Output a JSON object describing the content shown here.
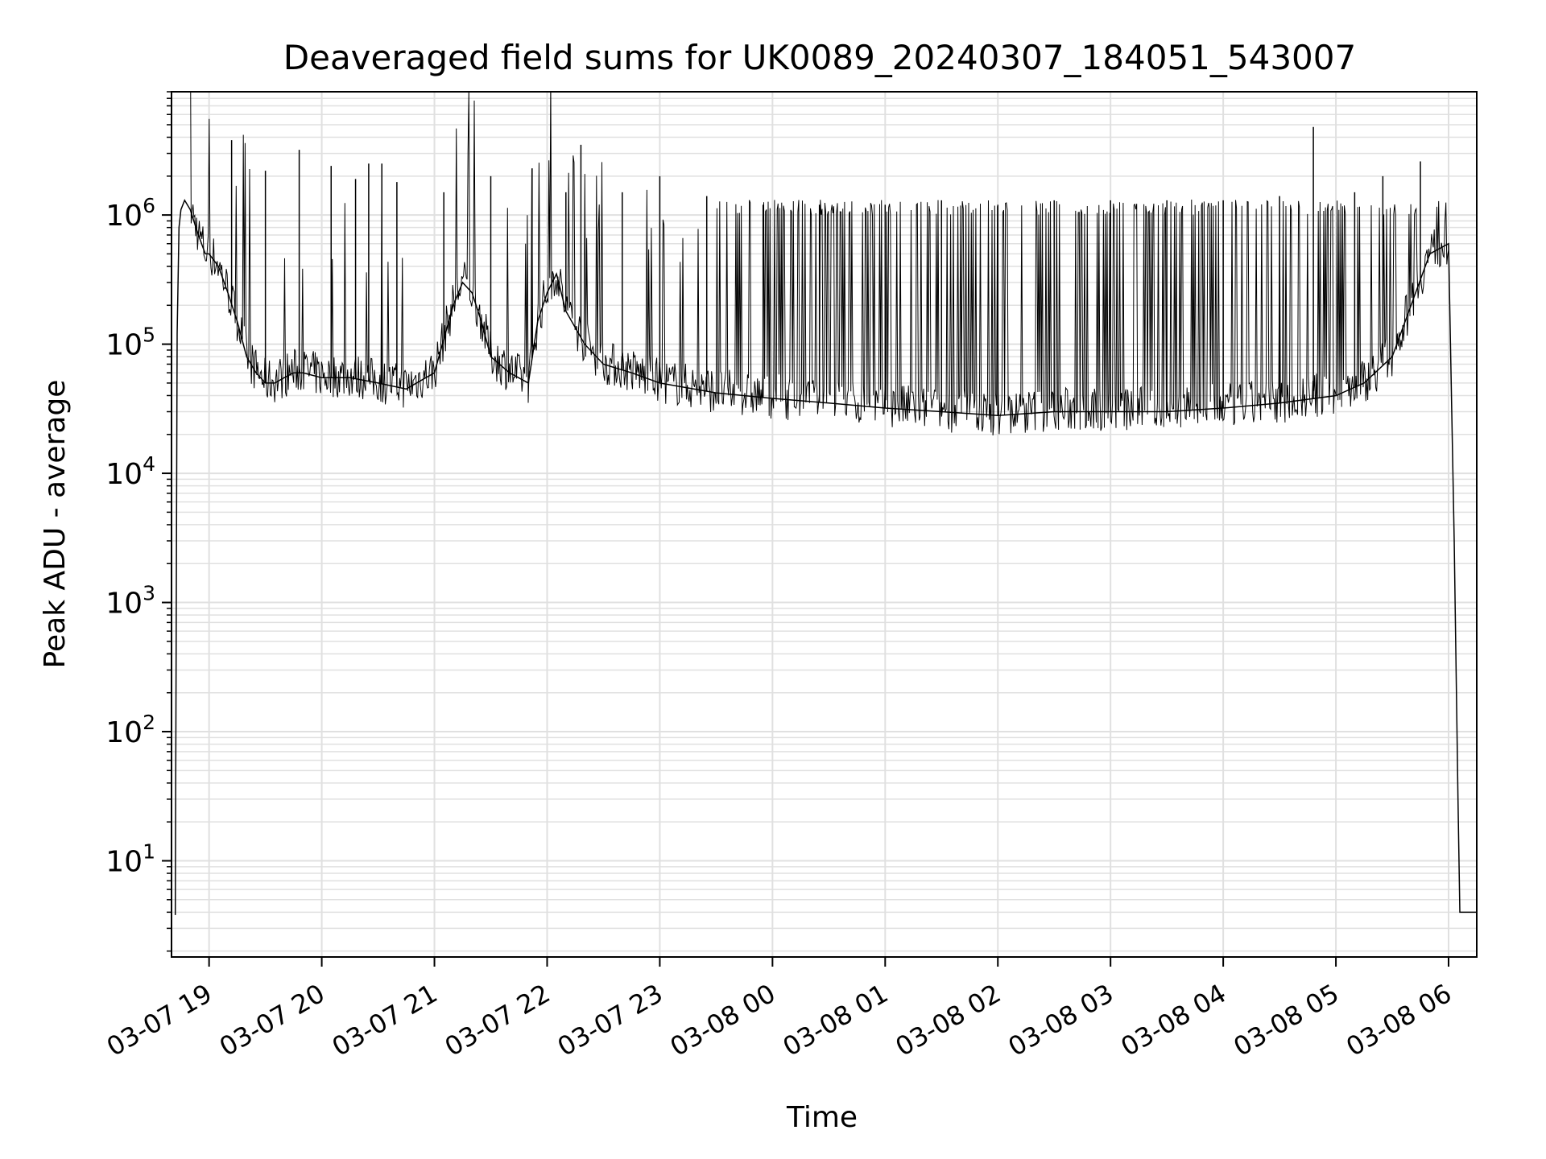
{
  "chart_data": {
    "type": "line",
    "title": "Deaveraged field sums for UK0089_20240307_184051_543007",
    "xlabel": "Time",
    "ylabel": "Peak ADU - average",
    "yscale": "log",
    "ylim": [
      1.8,
      9000000
    ],
    "xlim": [
      "2024-03-07 18:40",
      "2024-03-08 06:15"
    ],
    "grid": true,
    "line_color": "#000000",
    "grid_color": "#e0e0e0",
    "x_ticks": [
      {
        "value": "2024-03-07 19:00",
        "label": "03-07 19"
      },
      {
        "value": "2024-03-07 20:00",
        "label": "03-07 20"
      },
      {
        "value": "2024-03-07 21:00",
        "label": "03-07 21"
      },
      {
        "value": "2024-03-07 22:00",
        "label": "03-07 22"
      },
      {
        "value": "2024-03-07 23:00",
        "label": "03-07 23"
      },
      {
        "value": "2024-03-08 00:00",
        "label": "03-08 00"
      },
      {
        "value": "2024-03-08 01:00",
        "label": "03-08 01"
      },
      {
        "value": "2024-03-08 02:00",
        "label": "03-08 02"
      },
      {
        "value": "2024-03-08 03:00",
        "label": "03-08 03"
      },
      {
        "value": "2024-03-08 04:00",
        "label": "03-08 04"
      },
      {
        "value": "2024-03-08 05:00",
        "label": "03-08 05"
      },
      {
        "value": "2024-03-08 06:00",
        "label": "03-08 06"
      }
    ],
    "y_ticks": [
      {
        "value": 10,
        "base": "10",
        "exp": "1"
      },
      {
        "value": 100,
        "base": "10",
        "exp": "2"
      },
      {
        "value": 1000,
        "base": "10",
        "exp": "3"
      },
      {
        "value": 10000,
        "base": "10",
        "exp": "4"
      },
      {
        "value": 100000,
        "base": "10",
        "exp": "5"
      },
      {
        "value": 1000000,
        "base": "10",
        "exp": "6"
      }
    ],
    "series": [
      {
        "x": [
          "2024-03-07 18:42",
          "2024-03-07 18:43",
          "2024-03-07 18:44",
          "2024-03-07 18:45",
          "2024-03-07 18:47",
          "2024-03-07 18:50",
          "2024-03-07 18:53",
          "2024-03-07 18:56",
          "2024-03-07 18:58",
          "2024-03-07 19:00",
          "2024-03-07 19:05",
          "2024-03-07 19:10",
          "2024-03-07 19:15",
          "2024-03-07 19:20",
          "2024-03-07 19:25",
          "2024-03-07 19:30",
          "2024-03-07 19:35",
          "2024-03-07 19:40",
          "2024-03-07 19:45",
          "2024-03-07 19:50",
          "2024-03-07 20:00",
          "2024-03-07 20:15",
          "2024-03-07 20:30",
          "2024-03-07 20:45",
          "2024-03-07 21:00",
          "2024-03-07 21:10",
          "2024-03-07 21:15",
          "2024-03-07 21:20",
          "2024-03-07 21:25",
          "2024-03-07 21:30",
          "2024-03-07 21:40",
          "2024-03-07 21:50",
          "2024-03-07 21:55",
          "2024-03-07 22:00",
          "2024-03-07 22:05",
          "2024-03-07 22:10",
          "2024-03-07 22:20",
          "2024-03-07 22:30",
          "2024-03-07 22:45",
          "2024-03-07 23:00",
          "2024-03-07 23:30",
          "2024-03-08 00:00",
          "2024-03-08 00:30",
          "2024-03-08 01:00",
          "2024-03-08 01:30",
          "2024-03-08 02:00",
          "2024-03-08 02:30",
          "2024-03-08 03:00",
          "2024-03-08 03:30",
          "2024-03-08 04:00",
          "2024-03-08 04:30",
          "2024-03-08 05:00",
          "2024-03-08 05:15",
          "2024-03-08 05:30",
          "2024-03-08 05:40",
          "2024-03-08 05:50",
          "2024-03-08 06:00",
          "2024-03-08 06:03",
          "2024-03-08 06:05",
          "2024-03-08 06:06",
          "2024-03-08 06:08",
          "2024-03-08 06:15"
        ],
        "y": [
          3.8,
          120000,
          800000,
          1100000,
          1300000,
          1100000,
          800000,
          600000,
          500000,
          500000,
          400000,
          250000,
          150000,
          80000,
          60000,
          50000,
          50000,
          55000,
          60000,
          60000,
          55000,
          55000,
          50000,
          45000,
          60000,
          200000,
          300000,
          250000,
          150000,
          80000,
          60000,
          50000,
          150000,
          250000,
          350000,
          180000,
          100000,
          70000,
          60000,
          50000,
          42000,
          38000,
          35000,
          32000,
          30000,
          28000,
          30000,
          30000,
          30000,
          32000,
          35000,
          40000,
          50000,
          80000,
          200000,
          500000,
          600000,
          3000,
          30,
          4,
          4,
          4
        ]
      }
    ],
    "spikes": [
      {
        "x": "2024-03-07 19:12",
        "y": 3800000
      },
      {
        "x": "2024-03-07 19:30",
        "y": 2200000
      },
      {
        "x": "2024-03-07 19:48",
        "y": 3200000
      },
      {
        "x": "2024-03-07 20:05",
        "y": 2400000
      },
      {
        "x": "2024-03-07 20:18",
        "y": 1900000
      },
      {
        "x": "2024-03-07 20:25",
        "y": 2500000
      },
      {
        "x": "2024-03-07 20:32",
        "y": 2500000
      },
      {
        "x": "2024-03-07 20:40",
        "y": 1800000
      },
      {
        "x": "2024-03-07 21:05",
        "y": 1500000
      },
      {
        "x": "2024-03-07 21:30",
        "y": 2000000
      },
      {
        "x": "2024-03-07 21:52",
        "y": 2300000
      },
      {
        "x": "2024-03-07 22:10",
        "y": 1500000
      },
      {
        "x": "2024-03-07 22:18",
        "y": 3500000
      },
      {
        "x": "2024-03-07 22:40",
        "y": 1500000
      },
      {
        "x": "2024-03-07 23:00",
        "y": 2000000
      },
      {
        "x": "2024-03-07 23:25",
        "y": 1400000
      },
      {
        "x": "2024-03-07 23:55",
        "y": 1200000
      },
      {
        "x": "2024-03-08 00:25",
        "y": 1200000
      },
      {
        "x": "2024-03-08 01:00",
        "y": 1200000
      },
      {
        "x": "2024-03-08 01:30",
        "y": 1300000
      },
      {
        "x": "2024-03-08 02:00",
        "y": 1200000
      },
      {
        "x": "2024-03-08 02:30",
        "y": 1300000
      },
      {
        "x": "2024-03-08 03:00",
        "y": 1300000
      },
      {
        "x": "2024-03-08 03:30",
        "y": 1300000
      },
      {
        "x": "2024-03-08 04:00",
        "y": 1300000
      },
      {
        "x": "2024-03-08 04:30",
        "y": 1400000
      },
      {
        "x": "2024-03-08 04:48",
        "y": 4800000
      },
      {
        "x": "2024-03-08 05:10",
        "y": 1500000
      },
      {
        "x": "2024-03-08 05:25",
        "y": 2000000
      },
      {
        "x": "2024-03-08 05:45",
        "y": 2600000
      }
    ]
  }
}
